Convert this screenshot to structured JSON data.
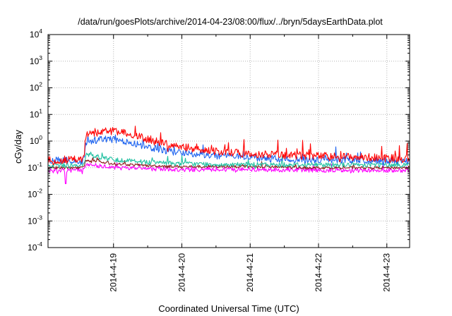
{
  "chart_data": {
    "type": "line",
    "title": "/data/run/goesPlots/archive/2014-04-23/08:00/flux/../bryn/5daysEarthData.plot",
    "xlabel": "Coordinated Universal Time (UTC)",
    "ylabel": "cGy/day",
    "yscale": "log",
    "ylim": [
      0.0001,
      10000
    ],
    "xlim": [
      "2014-04-18T01:00",
      "2014-04-23T08:00"
    ],
    "x_ticks": [
      "2014-4-19",
      "2014-4-20",
      "2014-4-21",
      "2014-4-22",
      "2014-4-23"
    ],
    "y_ticks": [
      {
        "base": "10",
        "exp": "4"
      },
      {
        "base": "10",
        "exp": "3"
      },
      {
        "base": "10",
        "exp": "2"
      },
      {
        "base": "10",
        "exp": "1"
      },
      {
        "base": "10",
        "exp": "0"
      },
      {
        "base": "10",
        "exp": "-1"
      },
      {
        "base": "10",
        "exp": "-2"
      },
      {
        "base": "10",
        "exp": "-3"
      },
      {
        "base": "10",
        "exp": "-4"
      }
    ],
    "grid": true,
    "legend": "none",
    "event_onset": "2014-04-18T14:00",
    "series": [
      {
        "color": "#ff0000",
        "x": [
          "2014-04-18T01:00",
          "2014-04-18T13:00",
          "2014-04-18T14:30",
          "2014-04-18T18:00",
          "2014-04-18T22:00",
          "2014-04-19T04:00",
          "2014-04-19T12:00",
          "2014-04-19T20:00",
          "2014-04-20T08:00",
          "2014-04-20T20:00",
          "2014-04-21T08:00",
          "2014-04-21T20:00",
          "2014-04-22T08:00",
          "2014-04-22T20:00",
          "2014-04-23T08:00"
        ],
        "y": [
          0.2,
          0.2,
          1.8,
          2.2,
          2.5,
          2.0,
          1.2,
          0.7,
          0.45,
          0.35,
          0.3,
          0.28,
          0.26,
          0.24,
          0.22
        ]
      },
      {
        "color": "#1e64f0",
        "x": [
          "2014-04-18T01:00",
          "2014-04-18T13:00",
          "2014-04-18T14:30",
          "2014-04-18T18:00",
          "2014-04-18T22:00",
          "2014-04-19T04:00",
          "2014-04-19T12:00",
          "2014-04-19T20:00",
          "2014-04-20T08:00",
          "2014-04-20T20:00",
          "2014-04-21T08:00",
          "2014-04-21T20:00",
          "2014-04-22T08:00",
          "2014-04-22T20:00",
          "2014-04-23T08:00"
        ],
        "y": [
          0.18,
          0.18,
          0.9,
          1.1,
          1.2,
          0.95,
          0.6,
          0.4,
          0.3,
          0.25,
          0.22,
          0.2,
          0.2,
          0.19,
          0.18
        ]
      },
      {
        "color": "#20c0a0",
        "x": [
          "2014-04-18T01:00",
          "2014-04-18T13:00",
          "2014-04-18T14:30",
          "2014-04-18T18:00",
          "2014-04-19T00:00",
          "2014-04-19T12:00",
          "2014-04-20T00:00",
          "2014-04-21T00:00",
          "2014-04-22T00:00",
          "2014-04-23T08:00"
        ],
        "y": [
          0.12,
          0.12,
          0.3,
          0.26,
          0.2,
          0.16,
          0.14,
          0.13,
          0.13,
          0.13
        ]
      },
      {
        "color": "#8b1a1a",
        "x": [
          "2014-04-18T01:00",
          "2014-04-18T13:00",
          "2014-04-18T14:30",
          "2014-04-18T18:00",
          "2014-04-19T00:00",
          "2014-04-19T12:00",
          "2014-04-20T00:00",
          "2014-04-21T00:00",
          "2014-04-22T00:00",
          "2014-04-23T08:00"
        ],
        "y": [
          0.1,
          0.1,
          0.19,
          0.17,
          0.14,
          0.12,
          0.11,
          0.11,
          0.1,
          0.1
        ]
      },
      {
        "color": "#ff00ff",
        "x": [
          "2014-04-18T01:00",
          "2014-04-18T13:00",
          "2014-04-18T14:30",
          "2014-04-18T18:00",
          "2014-04-19T00:00",
          "2014-04-19T12:00",
          "2014-04-20T00:00",
          "2014-04-21T00:00",
          "2014-04-22T00:00",
          "2014-04-23T08:00"
        ],
        "y": [
          0.08,
          0.08,
          0.14,
          0.12,
          0.1,
          0.09,
          0.085,
          0.085,
          0.08,
          0.08
        ]
      }
    ]
  }
}
